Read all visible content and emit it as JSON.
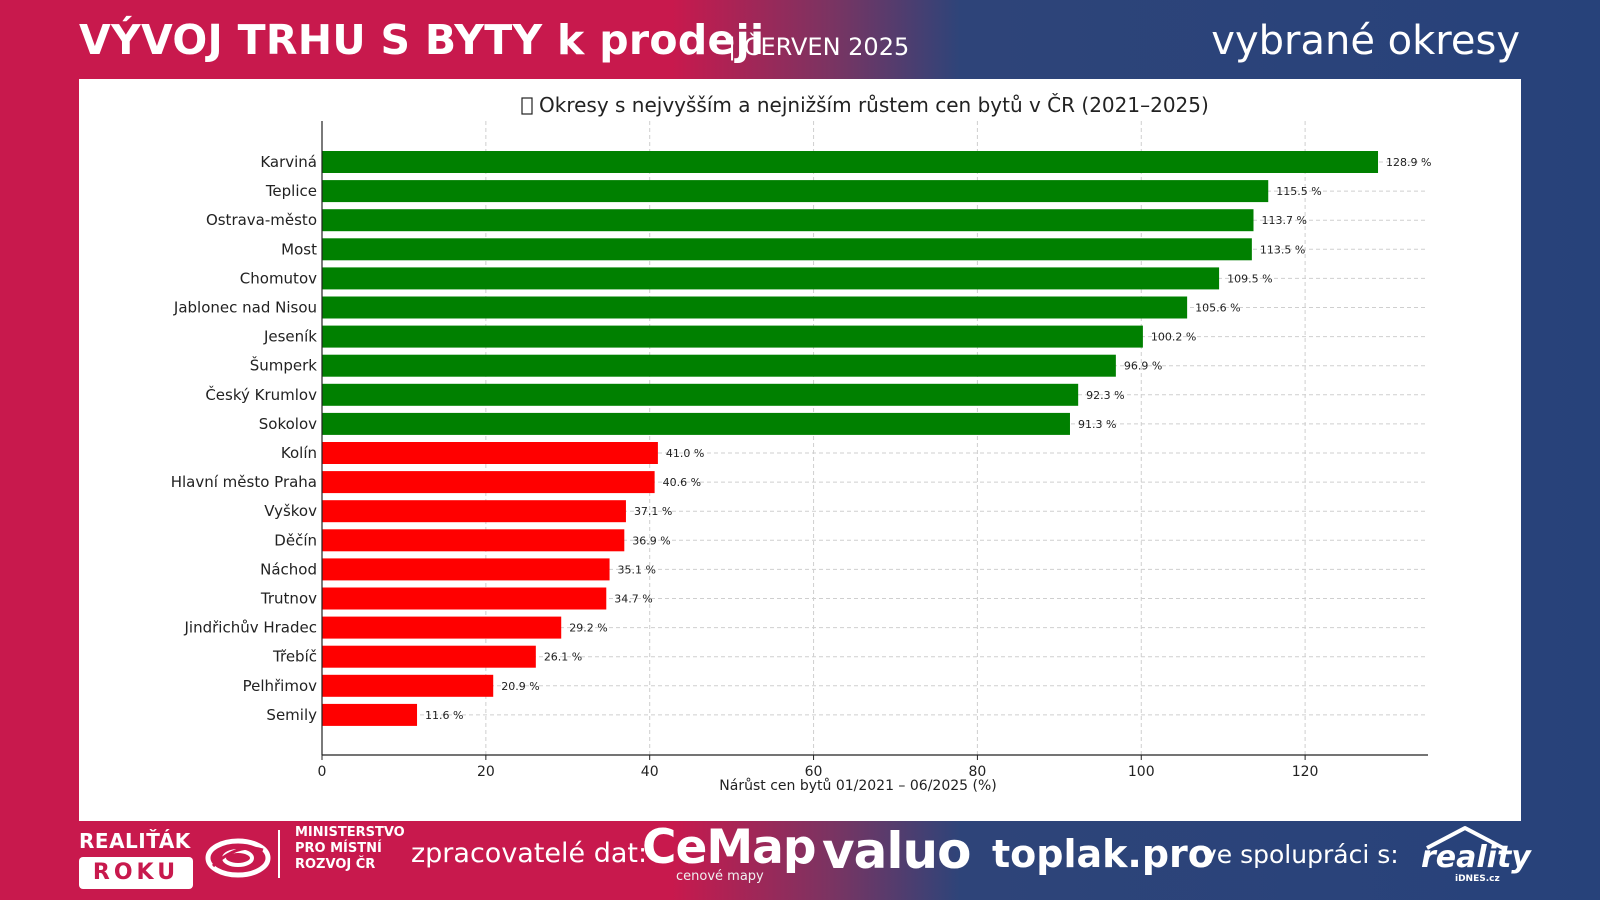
{
  "header": {
    "title": "VÝVOJ TRHU S BYTY k prodeji",
    "subtitle": "| ČERVEN 2025",
    "right_label": "vybrané okresy"
  },
  "colors": {
    "growth_high": "#008000",
    "growth_low": "#ff0000",
    "brand_pink": "#c8194d",
    "brand_navy": "#27427a"
  },
  "chart_data": {
    "type": "bar",
    "orientation": "horizontal",
    "title": "Okresy s nejvyšším a nejnižším růstem cen bytů v ČR (2021–2025)",
    "title_icon": "missing-glyph",
    "xlabel": "Nárůst cen bytů 01/2021 – 06/2025 (%)",
    "ylabel": "",
    "xlim": [
      0,
      135
    ],
    "xticks": [
      0,
      20,
      40,
      60,
      80,
      100,
      120
    ],
    "grid": true,
    "value_suffix": " %",
    "categories": [
      "Karviná",
      "Teplice",
      "Ostrava-město",
      "Most",
      "Chomutov",
      "Jablonec nad Nisou",
      "Jeseník",
      "Šumperk",
      "Český Krumlov",
      "Sokolov",
      "Kolín",
      "Hlavní město Praha",
      "Vyškov",
      "Děčín",
      "Náchod",
      "Trutnov",
      "Jindřichův Hradec",
      "Třebíč",
      "Pelhřimov",
      "Semily"
    ],
    "values": [
      128.9,
      115.5,
      113.7,
      113.5,
      109.5,
      105.6,
      100.2,
      96.9,
      92.3,
      91.3,
      41.0,
      40.6,
      37.1,
      36.9,
      35.1,
      34.7,
      29.2,
      26.1,
      20.9,
      11.6
    ],
    "value_labels": [
      "128.9 %",
      "115.5 %",
      "113.7 %",
      "113.5 %",
      "109.5 %",
      "105.6 %",
      "100.2 %",
      "96.9 %",
      "92.3 %",
      "91.3 %",
      "41.0 %",
      "40.6 %",
      "37.1 %",
      "36.9 %",
      "35.1 %",
      "34.7 %",
      "29.2 %",
      "26.1 %",
      "20.9 %",
      "11.6 %"
    ],
    "groups": [
      "high",
      "high",
      "high",
      "high",
      "high",
      "high",
      "high",
      "high",
      "high",
      "high",
      "low",
      "low",
      "low",
      "low",
      "low",
      "low",
      "low",
      "low",
      "low",
      "low"
    ]
  },
  "footer": {
    "realitak_line1": "REALIŤÁK",
    "realitak_line2": "ROKU",
    "ministry_lines": [
      "MINISTERSTVO",
      "PRO MÍSTNÍ",
      "ROZVOJ ČR"
    ],
    "processors_label": "zpracovatelé dat:",
    "cemap_name": "CeMap",
    "cemap_sub": "cenové mapy",
    "valuo": "valuo",
    "toplak": "toplak.pro",
    "cooperation_label": "ve spolupráci s:",
    "reality_name": "reality",
    "reality_sub": "iDNES.cz"
  }
}
